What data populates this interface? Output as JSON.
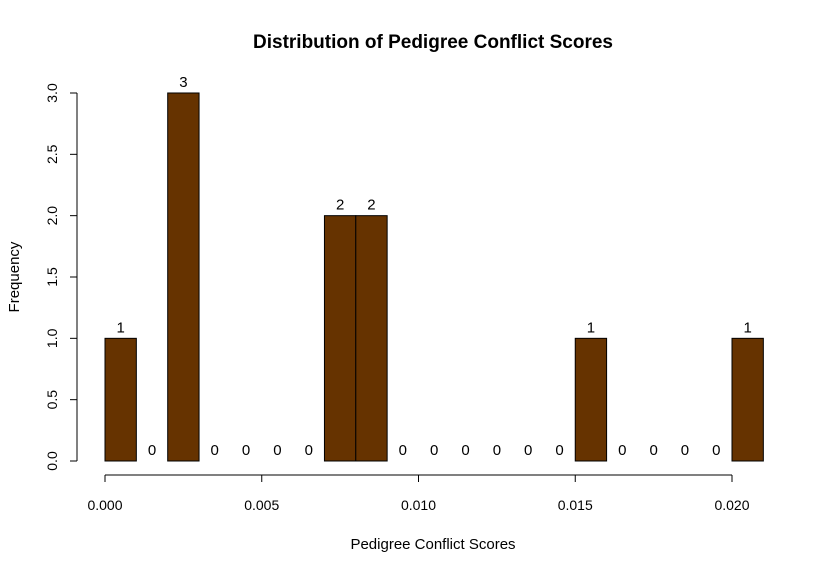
{
  "chart_data": {
    "type": "bar",
    "title": "Distribution of Pedigree Conflict Scores",
    "xlabel": "Pedigree  Conflict Scores",
    "ylabel": "Frequency",
    "bin_width": 0.001,
    "x_start": 0.0,
    "bins": [
      {
        "x0": 0.0,
        "x1": 0.001,
        "count": 1
      },
      {
        "x0": 0.001,
        "x1": 0.002,
        "count": 0
      },
      {
        "x0": 0.002,
        "x1": 0.003,
        "count": 3
      },
      {
        "x0": 0.003,
        "x1": 0.004,
        "count": 0
      },
      {
        "x0": 0.004,
        "x1": 0.005,
        "count": 0
      },
      {
        "x0": 0.005,
        "x1": 0.006,
        "count": 0
      },
      {
        "x0": 0.006,
        "x1": 0.007,
        "count": 0
      },
      {
        "x0": 0.007,
        "x1": 0.008,
        "count": 2
      },
      {
        "x0": 0.008,
        "x1": 0.009,
        "count": 2
      },
      {
        "x0": 0.009,
        "x1": 0.01,
        "count": 0
      },
      {
        "x0": 0.01,
        "x1": 0.011,
        "count": 0
      },
      {
        "x0": 0.011,
        "x1": 0.012,
        "count": 0
      },
      {
        "x0": 0.012,
        "x1": 0.013,
        "count": 0
      },
      {
        "x0": 0.013,
        "x1": 0.014,
        "count": 0
      },
      {
        "x0": 0.014,
        "x1": 0.015,
        "count": 0
      },
      {
        "x0": 0.015,
        "x1": 0.016,
        "count": 1
      },
      {
        "x0": 0.016,
        "x1": 0.017,
        "count": 0
      },
      {
        "x0": 0.017,
        "x1": 0.018,
        "count": 0
      },
      {
        "x0": 0.018,
        "x1": 0.019,
        "count": 0
      },
      {
        "x0": 0.019,
        "x1": 0.02,
        "count": 0
      },
      {
        "x0": 0.02,
        "x1": 0.021,
        "count": 1
      }
    ],
    "xlim": [
      0.0,
      0.021
    ],
    "ylim": [
      0.0,
      3.0
    ],
    "x_ticks": [
      0.0,
      0.005,
      0.01,
      0.015,
      0.02
    ],
    "x_tick_labels": [
      "0.000",
      "0.005",
      "0.010",
      "0.015",
      "0.020"
    ],
    "y_ticks": [
      0.0,
      0.5,
      1.0,
      1.5,
      2.0,
      2.5,
      3.0
    ],
    "y_tick_labels": [
      "0.0",
      "0.5",
      "1.0",
      "1.5",
      "2.0",
      "2.5",
      "3.0"
    ],
    "bar_color": "#663300",
    "bar_border_color": "#000000",
    "grid": false,
    "legend": "none"
  }
}
